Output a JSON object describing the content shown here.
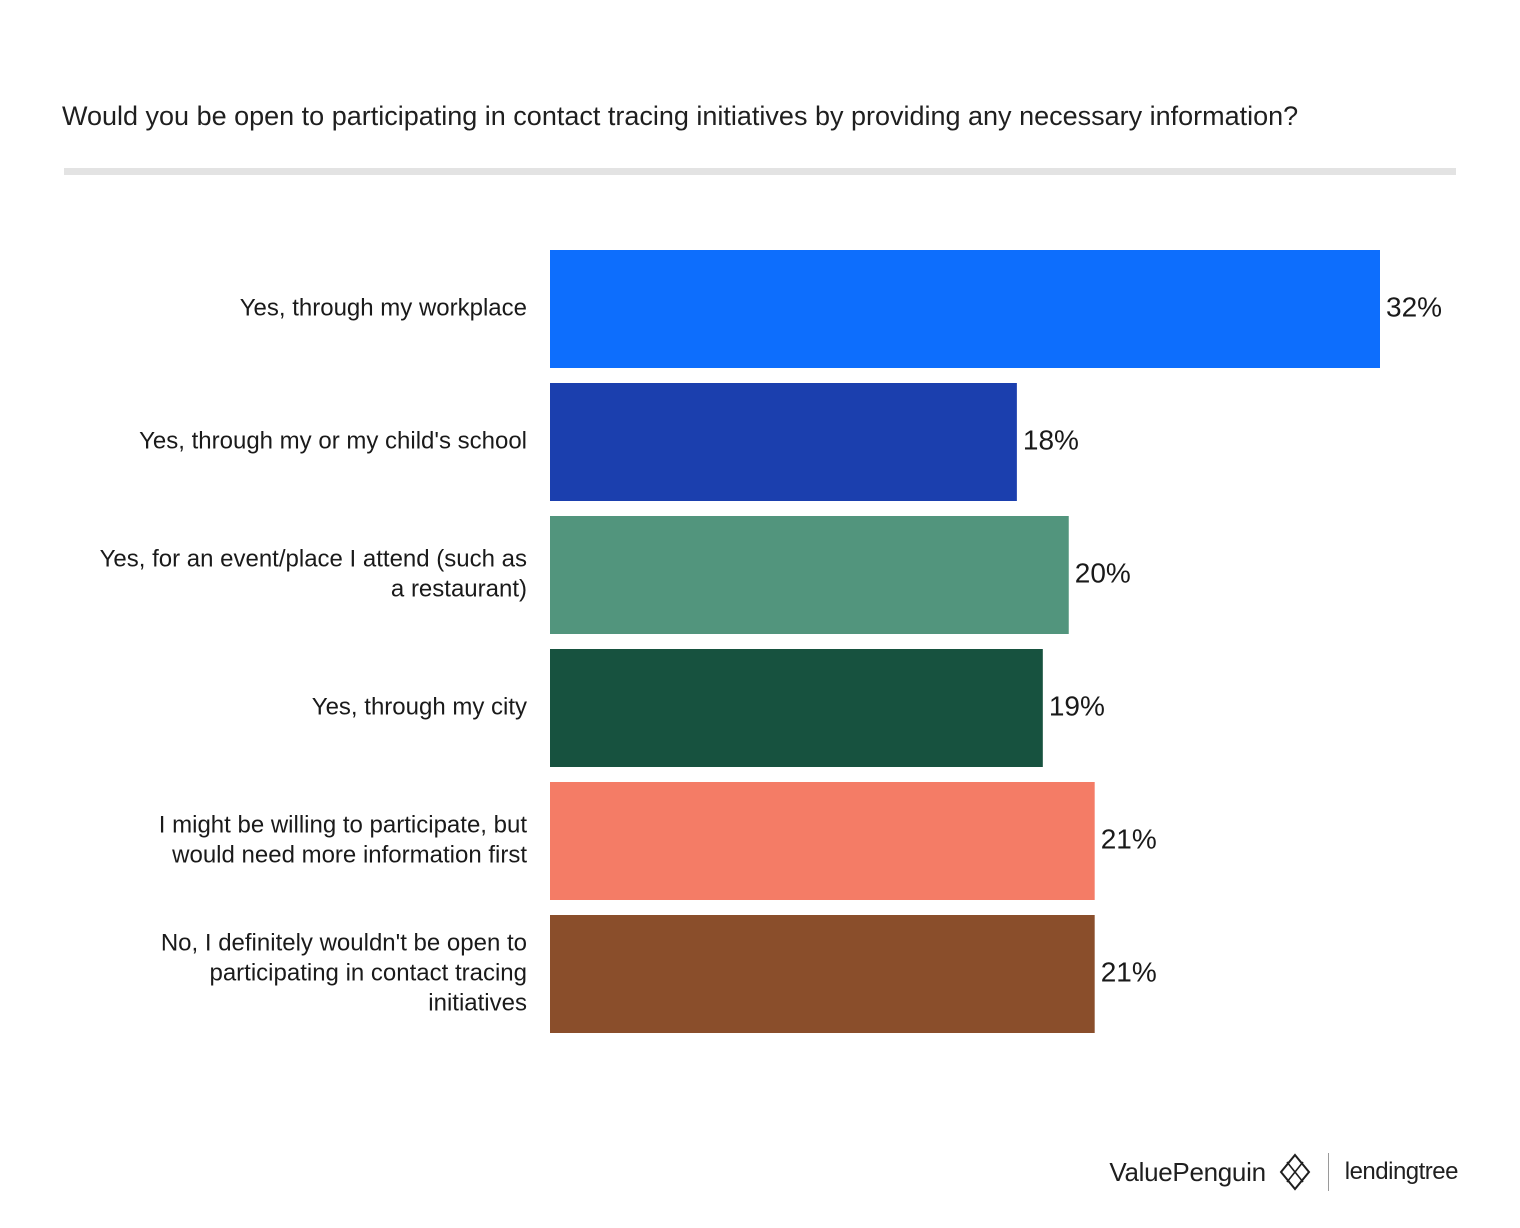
{
  "chart_data": {
    "type": "bar",
    "orientation": "horizontal",
    "title": "Would you be open to participating in contact tracing initiatives by providing any necessary information?",
    "categories": [
      [
        "Yes, through my workplace"
      ],
      [
        "Yes, through my or my child's school"
      ],
      [
        "Yes, for an event/place I attend (such as",
        "a restaurant)"
      ],
      [
        "Yes, through my city"
      ],
      [
        "I might be willing to participate, but",
        "would need more information first"
      ],
      [
        "No, I definitely wouldn't be open to",
        "participating in contact tracing",
        "initiatives"
      ]
    ],
    "values": [
      32,
      18,
      20,
      19,
      21,
      21
    ],
    "value_labels": [
      "32%",
      "18%",
      "20%",
      "19%",
      "21%",
      "21%"
    ],
    "colors": [
      "#0d6efd",
      "#1b3fae",
      "#52957d",
      "#17523f",
      "#f47c66",
      "#8a4e2b"
    ],
    "xlim": [
      0,
      32
    ],
    "grid": false,
    "legend": "none"
  },
  "footer": {
    "brand_primary": "ValuePenguin",
    "brand_secondary": "lendingtree"
  }
}
